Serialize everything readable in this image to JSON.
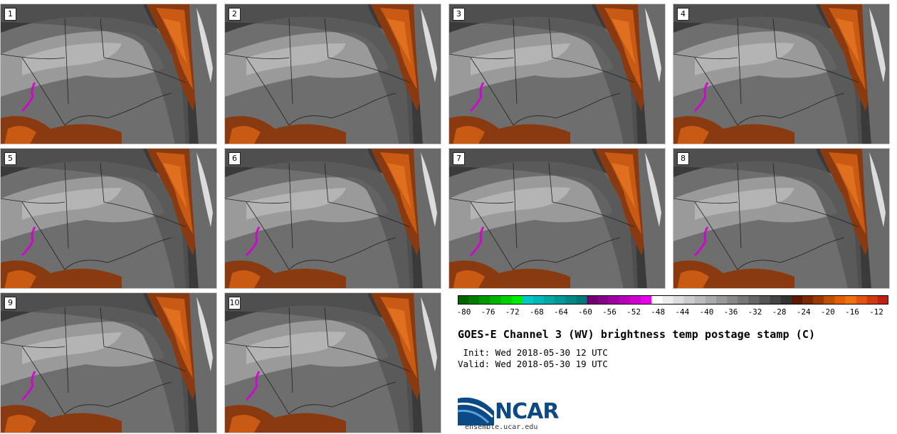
{
  "title": "GOES-E Channel 3 (WV) brightness temp postage stamp (C)",
  "init_line": " Init: Wed 2018-05-30 12 UTC",
  "valid_line": "Valid: Wed 2018-05-30 19 UTC",
  "panels": [
    "1",
    "2",
    "3",
    "4",
    "5",
    "6",
    "7",
    "8",
    "9",
    "10"
  ],
  "colorbar": {
    "ticks": [
      "-80",
      "-76",
      "-72",
      "-68",
      "-64",
      "-60",
      "-56",
      "-52",
      "-48",
      "-44",
      "-40",
      "-36",
      "-32",
      "-28",
      "-24",
      "-20",
      "-16",
      "-12"
    ],
    "min": -81,
    "max": -10,
    "colors": [
      "#006400",
      "#007d00",
      "#009a00",
      "#00b400",
      "#00d000",
      "#00ec00",
      "#00c8c8",
      "#00b8b8",
      "#00a8a8",
      "#009898",
      "#008888",
      "#007878",
      "#700070",
      "#880088",
      "#a000a0",
      "#b800b8",
      "#d000d0",
      "#e800e8",
      "#ffffff",
      "#eeeeee",
      "#dddddd",
      "#cccccc",
      "#bbbbbb",
      "#aaaaaa",
      "#999999",
      "#888888",
      "#777777",
      "#666666",
      "#555555",
      "#444444",
      "#333333",
      "#5a1a00",
      "#7a2a00",
      "#9a3a00",
      "#c05000",
      "#e06000",
      "#f07010",
      "#e05510",
      "#d03a10",
      "#c02010"
    ]
  },
  "logo_text": "NCAR",
  "url": "ensemble.ucar.edu",
  "colors": {
    "dark": "#3a3a3a",
    "mid": "#6e6e6e",
    "light": "#9a9a9a",
    "lighter": "#b4b4b4",
    "orange_dark": "#8a3a10",
    "orange": "#c85a14",
    "orange_bright": "#e07020",
    "magenta": "#d400d4",
    "logo_blue": "#0b4a85"
  }
}
